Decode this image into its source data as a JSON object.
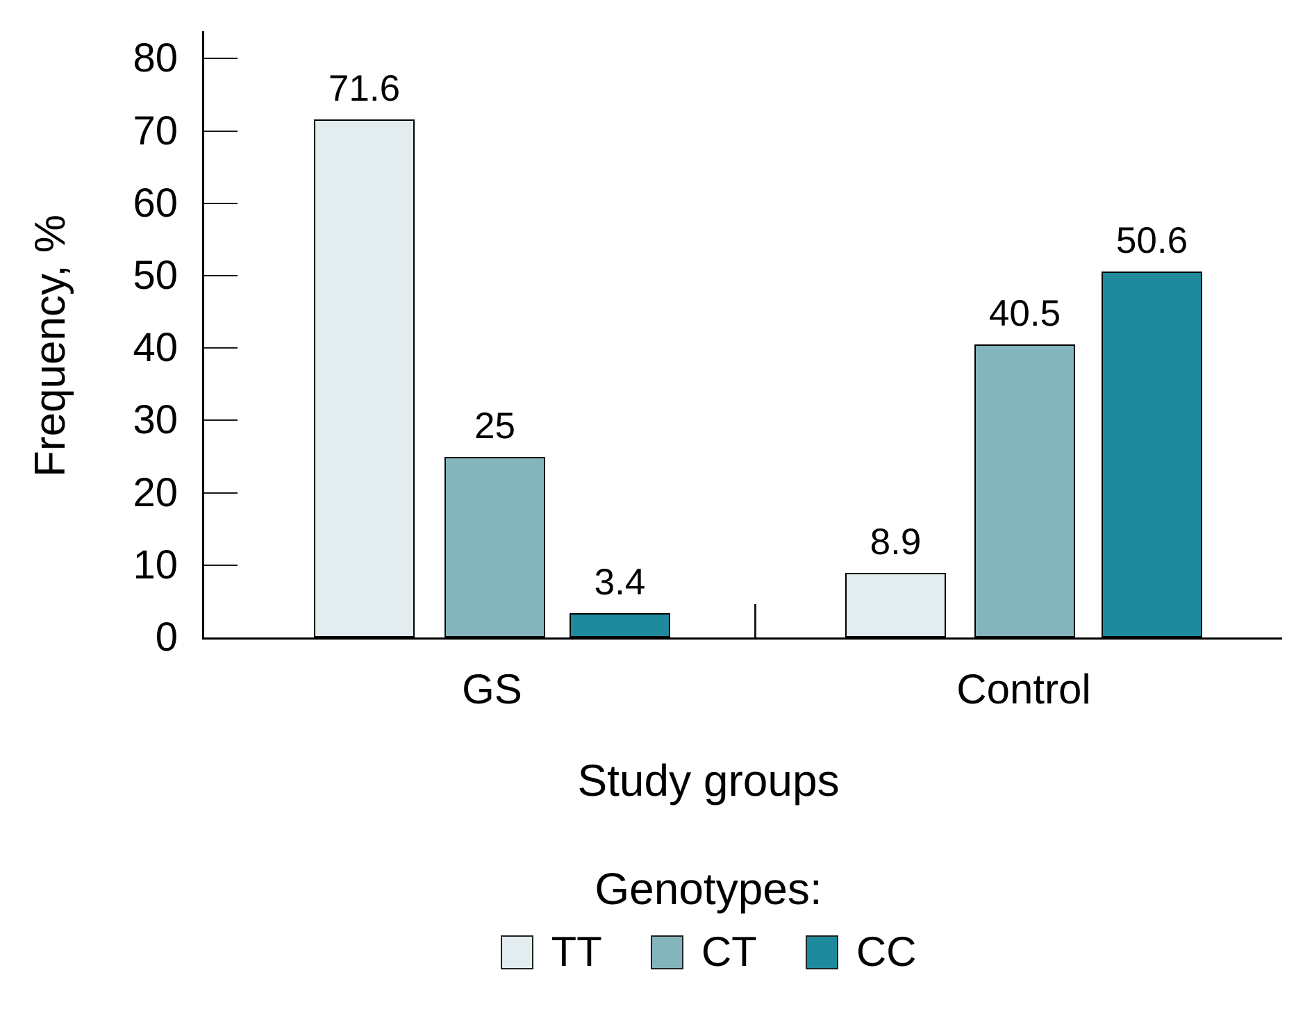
{
  "chart_data": {
    "type": "bar",
    "title": "",
    "ylabel": "Frequency, %",
    "xlabel": "Study groups",
    "ylim": [
      0,
      80
    ],
    "yticks": [
      80,
      70,
      60,
      50,
      40,
      30,
      20,
      10,
      0
    ],
    "categories": [
      "GS",
      "Control"
    ],
    "series": [
      {
        "name": "TT",
        "color": "#e3edef",
        "values": [
          71.6,
          8.9
        ],
        "labels": [
          "71.6",
          "8.9"
        ]
      },
      {
        "name": "CT",
        "color": "#84b5bd",
        "values": [
          25,
          40.5
        ],
        "labels": [
          "25",
          "40.5"
        ]
      },
      {
        "name": "CC",
        "color": "#1f8a9c",
        "values": [
          3.4,
          50.6
        ],
        "labels": [
          "3.4",
          "50.6"
        ]
      }
    ],
    "legend": {
      "title": "Genotypes:",
      "entries": [
        "TT",
        "CT",
        "CC"
      ],
      "position": "bottom"
    },
    "grid": false,
    "axis_color": "#000000",
    "text_color": "#000000",
    "background_color": "#ffffff"
  }
}
